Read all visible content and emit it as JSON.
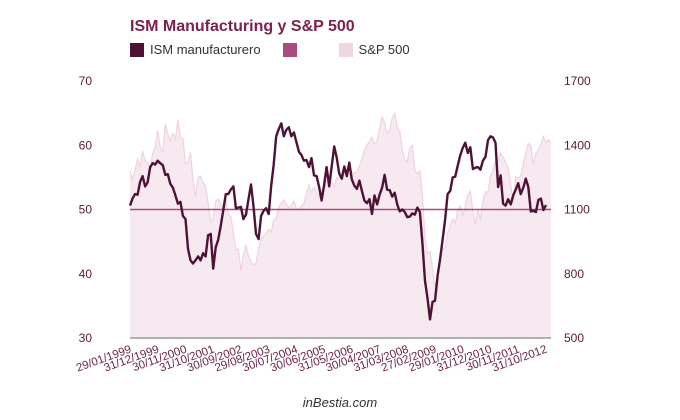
{
  "chart_data": {
    "type": "line",
    "title": "ISM Manufacturing y S&P 500",
    "legend": [
      {
        "name": "ISM manufacturero",
        "color": "#4e1236"
      },
      {
        "name": "",
        "color": "#a84d7e"
      },
      {
        "name": "S&P 500",
        "color": "#efd6e3"
      }
    ],
    "legend_position": "top-left",
    "xlabel": "",
    "ylabel_left": "",
    "ylabel_right": "",
    "left_axis": {
      "ylim": [
        30,
        70
      ],
      "ticks": [
        30,
        40,
        50,
        60,
        70
      ]
    },
    "right_axis": {
      "ylim": [
        500,
        1700
      ],
      "ticks": [
        500,
        800,
        1100,
        1400,
        1700
      ]
    },
    "reference_line": {
      "axis": "left",
      "value": 50,
      "color": "#a84d7e"
    },
    "x_tick_labels": [
      "29/01/1999",
      "31/12/1999",
      "30/11/2000",
      "31/10/2001",
      "30/09/2002",
      "29/08/2003",
      "30/07/2004",
      "30/06/2005",
      "31/05/2006",
      "30/04/2007",
      "31/03/2008",
      "27/02/2009",
      "29/01/2010",
      "31/12/2010",
      "30/11/2011",
      "31/10/2012"
    ],
    "x_tick_interval_months": 11,
    "series": [
      {
        "name": "ISM manufacturero",
        "axis": "left",
        "type": "line",
        "color": "#4e1236",
        "values": [
          50.6,
          51.7,
          52.4,
          52.3,
          54.3,
          55.2,
          53.6,
          54.2,
          56.6,
          57.2,
          57.0,
          57.6,
          57.2,
          56.9,
          55.4,
          55.5,
          54.0,
          53.4,
          52.2,
          50.9,
          51.2,
          49.0,
          48.5,
          43.9,
          42.1,
          41.6,
          42.1,
          42.7,
          42.1,
          43.2,
          42.7,
          46.0,
          46.2,
          40.8,
          44.1,
          45.3,
          47.5,
          49.9,
          52.4,
          52.4,
          53.1,
          53.6,
          50.2,
          50.3,
          50.4,
          48.5,
          49.2,
          51.6,
          53.9,
          50.5,
          46.2,
          45.4,
          49.0,
          49.8,
          50.2,
          49.3,
          53.7,
          57.0,
          61.4,
          62.5,
          63.4,
          61.4,
          62.4,
          62.8,
          61.4,
          62.0,
          60.5,
          59.0,
          58.5,
          57.6,
          57.7,
          56.6,
          58.0,
          55.3,
          55.2,
          53.5,
          51.4,
          53.8,
          56.6,
          53.6,
          56.7,
          59.8,
          58.1,
          55.6,
          54.8,
          56.7,
          55.2,
          57.3,
          54.7,
          53.7,
          53.2,
          54.5,
          52.9,
          51.4,
          51.0,
          51.6,
          49.3,
          52.2,
          50.8,
          52.3,
          53.4,
          55.4,
          53.1,
          53.0,
          52.0,
          52.6,
          50.8,
          49.7,
          50.0,
          49.6,
          48.8,
          48.9,
          49.4,
          49.2,
          50.3,
          49.6,
          44.8,
          38.9,
          36.2,
          32.9,
          35.6,
          35.8,
          39.7,
          42.3,
          45.3,
          48.4,
          52.4,
          52.9,
          55.0,
          55.1,
          56.8,
          58.4,
          59.6,
          60.4,
          58.8,
          59.7,
          56.3,
          56.5,
          56.6,
          56.2,
          57.6,
          58.2,
          60.8,
          61.4,
          61.2,
          60.4,
          53.5,
          55.3,
          50.9,
          50.6,
          51.6,
          50.8,
          52.2,
          53.1,
          54.1,
          52.4,
          53.4,
          54.8,
          53.5,
          49.7,
          49.8,
          49.6,
          51.5,
          51.7,
          49.9,
          50.7
        ]
      },
      {
        "name": "S&P 500",
        "axis": "right",
        "type": "area",
        "color": "#efd6e3",
        "values": [
          1280,
          1238,
          1286,
          1335,
          1302,
          1373,
          1329,
          1320,
          1283,
          1363,
          1389,
          1469,
          1394,
          1366,
          1499,
          1452,
          1421,
          1455,
          1431,
          1518,
          1437,
          1429,
          1315,
          1320,
          1366,
          1240,
          1160,
          1249,
          1256,
          1224,
          1211,
          1134,
          1041,
          1060,
          1139,
          1148,
          1130,
          1107,
          1147,
          1077,
          1067,
          990,
          912,
          916,
          815,
          886,
          936,
          880,
          856,
          841,
          849,
          916,
          964,
          975,
          990,
          1008,
          996,
          1051,
          1058,
          1112,
          1131,
          1145,
          1126,
          1107,
          1121,
          1141,
          1101,
          1104,
          1115,
          1130,
          1174,
          1212,
          1181,
          1204,
          1181,
          1157,
          1192,
          1191,
          1234,
          1220,
          1228,
          1207,
          1249,
          1248,
          1280,
          1281,
          1295,
          1311,
          1270,
          1270,
          1277,
          1304,
          1336,
          1378,
          1401,
          1418,
          1438,
          1406,
          1421,
          1482,
          1531,
          1503,
          1455,
          1474,
          1527,
          1549,
          1481,
          1468,
          1379,
          1331,
          1323,
          1386,
          1400,
          1280,
          1267,
          1282,
          1166,
          968,
          896,
          903,
          825,
          735,
          798,
          872,
          919,
          919,
          987,
          1021,
          1057,
          1036,
          1096,
          1116,
          1074,
          1115,
          1169,
          1187,
          1089,
          1031,
          1102,
          1049,
          1141,
          1183,
          1181,
          1258,
          1286,
          1327,
          1325,
          1364,
          1345,
          1321,
          1292,
          1218,
          1131,
          1253,
          1247,
          1258,
          1312,
          1366,
          1408,
          1398,
          1310,
          1362,
          1379,
          1406,
          1441,
          1412,
          1426,
          1410
        ]
      }
    ]
  },
  "footer": {
    "credit": "inBestia.com"
  }
}
